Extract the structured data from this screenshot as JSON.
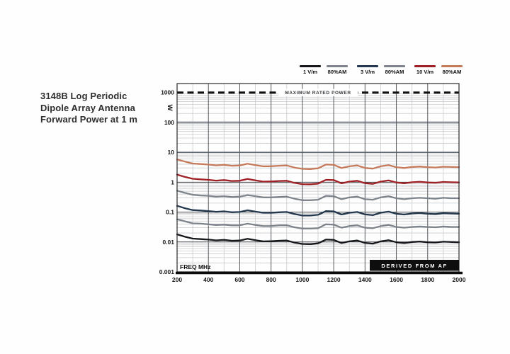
{
  "title": {
    "lines": [
      "3148B Log Periodic",
      "Dipole Array Antenna",
      "Forward Power at 1 m"
    ]
  },
  "legend": {
    "groups": [
      {
        "entries": [
          {
            "label": "1 V/m",
            "color": "#15171b"
          },
          {
            "label": "80%AM",
            "color": "#7d848c"
          }
        ]
      },
      {
        "entries": [
          {
            "label": "3 V/m",
            "color": "#24394f"
          },
          {
            "label": "80%AM",
            "color": "#7d848c"
          }
        ]
      },
      {
        "entries": [
          {
            "label": "10 V/m",
            "color": "#9e2024"
          },
          {
            "label": "80%AM",
            "color": "#c67a5c"
          }
        ]
      }
    ]
  },
  "chart_data": {
    "type": "line",
    "title": "3148B Log Periodic Dipole Array Antenna Forward Power at 1 m",
    "xlabel": "FREQ MHz",
    "ylabel": "W",
    "x_scale": "linear",
    "y_scale": "log",
    "xlim": [
      200,
      2000
    ],
    "ylim": [
      0.001,
      2000
    ],
    "grid": true,
    "legend_position": "top-right",
    "x_ticks": [
      200,
      400,
      600,
      800,
      1000,
      1200,
      1400,
      1600,
      1800,
      2000
    ],
    "y_tick_labels": [
      "1000",
      "100",
      "10",
      "1",
      "0.1",
      "0.01",
      "0.001"
    ],
    "y_ticks": [
      1000,
      100,
      10,
      1,
      0.1,
      0.01,
      0.001
    ],
    "annotations": {
      "max_rated_power": {
        "label": "MAXIMUM RATED POWER",
        "y": 1000,
        "style": "dashed"
      },
      "derived_from": {
        "label": "DERIVED FROM AF"
      }
    },
    "x": [
      200,
      250,
      300,
      350,
      400,
      450,
      500,
      550,
      600,
      650,
      700,
      750,
      800,
      850,
      900,
      950,
      1000,
      1050,
      1100,
      1150,
      1200,
      1250,
      1300,
      1350,
      1400,
      1450,
      1500,
      1550,
      1600,
      1650,
      1700,
      1750,
      1800,
      1850,
      1900,
      1950,
      2000
    ],
    "series": [
      {
        "name": "1 V/m",
        "color": "#15171b",
        "values": [
          0.018,
          0.015,
          0.013,
          0.0125,
          0.012,
          0.0113,
          0.0118,
          0.011,
          0.0112,
          0.0128,
          0.0115,
          0.0105,
          0.0106,
          0.011,
          0.0112,
          0.0095,
          0.0086,
          0.0085,
          0.009,
          0.012,
          0.0118,
          0.0092,
          0.0105,
          0.0112,
          0.0093,
          0.0088,
          0.0105,
          0.0115,
          0.0098,
          0.0092,
          0.01,
          0.0103,
          0.0098,
          0.0096,
          0.0102,
          0.01,
          0.0098
        ]
      },
      {
        "name": "1 V/m 80%AM",
        "color": "#7d848c",
        "values": [
          0.058,
          0.049,
          0.042,
          0.041,
          0.039,
          0.037,
          0.038,
          0.036,
          0.036,
          0.041,
          0.037,
          0.034,
          0.034,
          0.036,
          0.036,
          0.031,
          0.028,
          0.028,
          0.029,
          0.039,
          0.038,
          0.03,
          0.034,
          0.036,
          0.03,
          0.029,
          0.034,
          0.037,
          0.032,
          0.03,
          0.032,
          0.033,
          0.032,
          0.031,
          0.033,
          0.032,
          0.032
        ]
      },
      {
        "name": "3 V/m",
        "color": "#24394f",
        "values": [
          0.162,
          0.135,
          0.117,
          0.113,
          0.108,
          0.102,
          0.106,
          0.099,
          0.101,
          0.115,
          0.104,
          0.095,
          0.095,
          0.099,
          0.101,
          0.086,
          0.077,
          0.077,
          0.081,
          0.108,
          0.106,
          0.083,
          0.095,
          0.101,
          0.084,
          0.079,
          0.095,
          0.104,
          0.088,
          0.083,
          0.09,
          0.093,
          0.088,
          0.086,
          0.092,
          0.09,
          0.088
        ]
      },
      {
        "name": "3 V/m 80%AM",
        "color": "#7d848c",
        "values": [
          0.52,
          0.44,
          0.38,
          0.36,
          0.35,
          0.33,
          0.34,
          0.32,
          0.33,
          0.37,
          0.34,
          0.31,
          0.31,
          0.32,
          0.33,
          0.28,
          0.25,
          0.25,
          0.26,
          0.35,
          0.34,
          0.27,
          0.31,
          0.33,
          0.27,
          0.26,
          0.31,
          0.34,
          0.29,
          0.27,
          0.29,
          0.3,
          0.29,
          0.28,
          0.3,
          0.29,
          0.29
        ]
      },
      {
        "name": "10 V/m",
        "color": "#9e2024",
        "values": [
          1.8,
          1.5,
          1.3,
          1.25,
          1.2,
          1.13,
          1.18,
          1.1,
          1.12,
          1.28,
          1.15,
          1.05,
          1.06,
          1.1,
          1.12,
          0.95,
          0.86,
          0.85,
          0.9,
          1.2,
          1.18,
          0.92,
          1.05,
          1.12,
          0.93,
          0.88,
          1.05,
          1.15,
          0.98,
          0.92,
          1.0,
          1.03,
          0.98,
          0.96,
          1.02,
          1.0,
          0.98
        ]
      },
      {
        "name": "10 V/m 80%AM",
        "color": "#c67a5c",
        "values": [
          5.8,
          4.9,
          4.2,
          4.05,
          3.9,
          3.66,
          3.82,
          3.56,
          3.63,
          4.15,
          3.73,
          3.4,
          3.43,
          3.56,
          3.63,
          3.08,
          2.79,
          2.75,
          2.92,
          3.89,
          3.82,
          2.98,
          3.4,
          3.63,
          3.01,
          2.85,
          3.4,
          3.73,
          3.18,
          2.98,
          3.24,
          3.34,
          3.18,
          3.11,
          3.3,
          3.24,
          3.18
        ]
      }
    ]
  },
  "colors": {
    "minor_grid": "#c9cbcd",
    "major_grid_v": "#55595e",
    "major_grid_h": "#3f4348",
    "hundred_line": "#90959b",
    "ten_line": "#5d6570",
    "border": "#2b2b2b",
    "axis": "#0b0b0b",
    "derived_box_bg": "#0e0e0e",
    "derived_box_text": "#ffffff",
    "max_power_text": "#35383c"
  }
}
